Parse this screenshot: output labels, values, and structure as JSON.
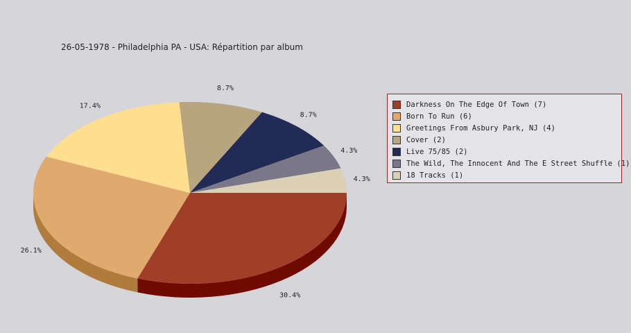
{
  "chart_data": {
    "type": "pie",
    "title": "26-05-1978 - Philadelphia PA - USA:  Répartition par album",
    "slices": [
      {
        "label": "Darkness On The Edge Of Town (7)",
        "value": 7,
        "percent_label": "30.4%",
        "color": "#a03e28",
        "side_color": "#6e0a00"
      },
      {
        "label": "Born To Run (6)",
        "value": 6,
        "percent_label": "26.1%",
        "color": "#e0aa6e",
        "side_color": "#b07c3c"
      },
      {
        "label": "Greetings From Asbury Park, NJ (4)",
        "value": 4,
        "percent_label": "17.4%",
        "color": "#fedf90",
        "side_color": "#c8aa5e"
      },
      {
        "label": "Cover (2)",
        "value": 2,
        "percent_label": "8.7%",
        "color": "#b8a47e",
        "side_color": "#86734e"
      },
      {
        "label": "Live 75/85 (2)",
        "value": 2,
        "percent_label": "8.7%",
        "color": "#222a56",
        "side_color": "#10143a"
      },
      {
        "label": "The Wild, The Innocent And The E Street Shuffle (1)",
        "value": 1,
        "percent_label": "4.3%",
        "color": "#7a7888",
        "side_color": "#4e4c5c"
      },
      {
        "label": "18 Tracks (1)",
        "value": 1,
        "percent_label": "4.3%",
        "color": "#dbcfb4",
        "side_color": "#a89a80"
      }
    ],
    "legend_position": "right"
  }
}
